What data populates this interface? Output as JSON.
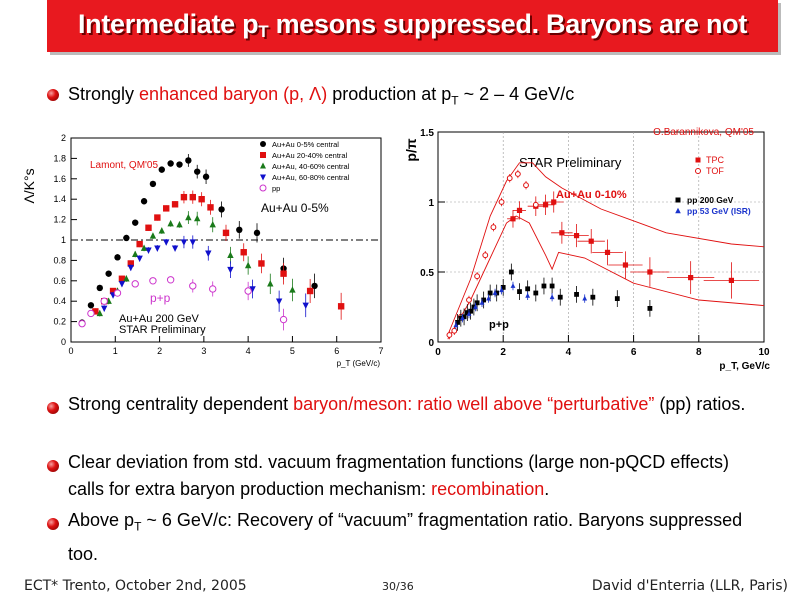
{
  "slide": {
    "title_main": "Intermediate p",
    "title_sub": "T",
    "title_rest": " mesons suppressed. Baryons are not"
  },
  "bullets": [
    {
      "pre": "Strongly ",
      "red": "enhanced baryon (p, Λ)",
      "post": " production at p",
      "sub": "T",
      "post2": " ~ 2 – 4 GeV/c"
    },
    {
      "pre": "Strong centrality dependent ",
      "red": "baryon/meson: ratio well above “perturbative”",
      "post": " (pp) ratios."
    },
    {
      "pre": "Clear deviation from std. vacuum fragmentation functions (large non-pQCD effects) calls for extra baryon production mechanism: ",
      "red": "recombination",
      "post": "."
    },
    {
      "pre": "Above p",
      "sub": "T",
      "post": " ~ 6 GeV/c: Recovery of “vacuum” fragmentation ratio. Baryons suppressed too."
    }
  ],
  "footer": {
    "left": "ECT* Trento, October 2nd, 2005",
    "center": "30/36",
    "right": "David d'Enterria (LLR, Paris)"
  },
  "colors": {
    "accent": "#e8191f",
    "text_red": "#e01010"
  },
  "chart_data": [
    {
      "type": "scatter",
      "ylabel": "Λ/K°s",
      "xlabel": "p_T (GeV/c)",
      "xlim": [
        0,
        7
      ],
      "ylim": [
        0,
        2
      ],
      "xticks": [
        "0",
        "1",
        "2",
        "3",
        "4",
        "5",
        "6",
        "7"
      ],
      "yticks": [
        "0",
        "0.2",
        "0.4",
        "0.6",
        "0.8",
        "1",
        "1.2",
        "1.4",
        "1.6",
        "1.8",
        "2"
      ],
      "reference_line": 1,
      "annotations": {
        "credit": "Lamont, QM'05",
        "system": "Au+Au 0-5%",
        "pp_label": "p+p",
        "energy": "Au+Au 200 GeV",
        "prelim": "STAR Preliminary"
      },
      "series": [
        {
          "name": "Au+Au 0-5% central",
          "color": "#000000",
          "marker": "circle",
          "x": [
            0.25,
            0.45,
            0.65,
            0.85,
            1.05,
            1.25,
            1.45,
            1.65,
            1.85,
            2.05,
            2.25,
            2.45,
            2.65,
            2.85,
            3.05,
            3.4,
            3.8,
            4.2,
            4.8,
            5.5
          ],
          "y": [
            0.19,
            0.36,
            0.53,
            0.67,
            0.83,
            1.02,
            1.17,
            1.38,
            1.55,
            1.69,
            1.75,
            1.74,
            1.78,
            1.67,
            1.62,
            1.3,
            1.1,
            1.07,
            0.72,
            0.55
          ]
        },
        {
          "name": "Au+Au 20-40% central",
          "color": "#e01010",
          "marker": "square",
          "x": [
            0.55,
            0.75,
            0.95,
            1.15,
            1.35,
            1.55,
            1.75,
            1.95,
            2.15,
            2.35,
            2.55,
            2.75,
            2.95,
            3.15,
            3.5,
            3.9,
            4.3,
            4.8,
            5.4,
            6.1
          ],
          "y": [
            0.3,
            0.4,
            0.5,
            0.62,
            0.77,
            0.96,
            1.12,
            1.22,
            1.31,
            1.35,
            1.42,
            1.42,
            1.4,
            1.32,
            1.07,
            0.88,
            0.77,
            0.67,
            0.5,
            0.35
          ]
        },
        {
          "name": "Au+Au, 40-60% central",
          "color": "#1a7a1a",
          "marker": "triangle-up",
          "x": [
            0.65,
            0.85,
            1.05,
            1.25,
            1.45,
            1.65,
            1.85,
            2.05,
            2.25,
            2.45,
            2.65,
            2.85,
            3.2,
            3.6,
            4.0,
            4.5,
            5.0
          ],
          "y": [
            0.28,
            0.4,
            0.5,
            0.62,
            0.86,
            0.92,
            1.04,
            1.09,
            1.16,
            1.15,
            1.22,
            1.21,
            1.15,
            0.85,
            0.75,
            0.57,
            0.51
          ]
        },
        {
          "name": "Au+Au, 60-80% central",
          "color": "#1010cc",
          "marker": "triangle-down",
          "x": [
            0.75,
            0.95,
            1.15,
            1.35,
            1.55,
            1.75,
            1.95,
            2.15,
            2.35,
            2.55,
            2.75,
            3.1,
            3.6,
            4.1,
            4.7,
            5.3
          ],
          "y": [
            0.33,
            0.46,
            0.57,
            0.73,
            0.82,
            0.9,
            0.92,
            0.98,
            0.92,
            0.98,
            0.98,
            0.87,
            0.71,
            0.52,
            0.4,
            0.36
          ]
        },
        {
          "name": "pp",
          "color": "#cc33cc",
          "marker": "open-circle",
          "x": [
            0.25,
            0.45,
            0.75,
            1.05,
            1.45,
            1.85,
            2.25,
            2.75,
            3.2,
            4.0,
            4.8
          ],
          "y": [
            0.18,
            0.28,
            0.4,
            0.48,
            0.57,
            0.6,
            0.61,
            0.55,
            0.52,
            0.5,
            0.22
          ]
        }
      ]
    },
    {
      "type": "scatter",
      "ylabel": "p/π",
      "xlabel": "p_T, GeV/c",
      "xlim": [
        0,
        10
      ],
      "ylim": [
        0,
        1.5
      ],
      "xticks": [
        "0",
        "2",
        "4",
        "6",
        "8",
        "10"
      ],
      "yticks": [
        "0",
        "0.5",
        "1",
        "1.5"
      ],
      "annotations": {
        "credit": "O.Barannikova, QM'05",
        "prelim": "STAR Preliminary",
        "system": "Au+Au 0-10%",
        "pp_label": "p+p"
      },
      "series": [
        {
          "name": "TPC",
          "color": "#e01010",
          "marker": "square",
          "x": [
            2.3,
            2.5,
            3.0,
            3.3,
            3.55,
            3.8,
            4.25,
            4.7,
            5.2,
            5.75,
            6.5,
            7.75,
            9.0
          ],
          "y": [
            0.88,
            0.94,
            0.97,
            0.98,
            1.0,
            0.78,
            0.76,
            0.72,
            0.64,
            0.55,
            0.5,
            0.46,
            0.44
          ]
        },
        {
          "name": "TOF",
          "color": "#e01010",
          "marker": "open-circle",
          "x": [
            0.35,
            0.5,
            0.7,
            0.95,
            1.2,
            1.45,
            1.7,
            1.95,
            2.2,
            2.45,
            2.7,
            3.0
          ],
          "y": [
            0.05,
            0.08,
            0.18,
            0.3,
            0.47,
            0.62,
            0.82,
            1.0,
            1.17,
            1.2,
            1.12,
            0.98
          ]
        },
        {
          "name": "pp 200 GeV",
          "color": "#000000",
          "marker": "square",
          "x": [
            0.6,
            0.7,
            0.8,
            0.9,
            1.0,
            1.1,
            1.2,
            1.4,
            1.6,
            1.8,
            2.0,
            2.25,
            2.5,
            2.75,
            3.0,
            3.25,
            3.5,
            3.75,
            4.25,
            4.75,
            5.5,
            6.5
          ],
          "y": [
            0.14,
            0.17,
            0.18,
            0.21,
            0.22,
            0.25,
            0.28,
            0.3,
            0.35,
            0.35,
            0.39,
            0.5,
            0.36,
            0.38,
            0.35,
            0.4,
            0.4,
            0.32,
            0.34,
            0.32,
            0.31,
            0.24
          ]
        },
        {
          "name": "pp 53 GeV (ISR)",
          "color": "#1a33cc",
          "marker": "triangle-up",
          "x": [
            0.55,
            0.75,
            0.95,
            1.15,
            1.35,
            1.55,
            1.75,
            1.95,
            2.3,
            2.75,
            3.5,
            4.5
          ],
          "y": [
            0.12,
            0.17,
            0.2,
            0.25,
            0.28,
            0.31,
            0.35,
            0.37,
            0.4,
            0.33,
            0.32,
            0.31
          ]
        }
      ]
    }
  ]
}
